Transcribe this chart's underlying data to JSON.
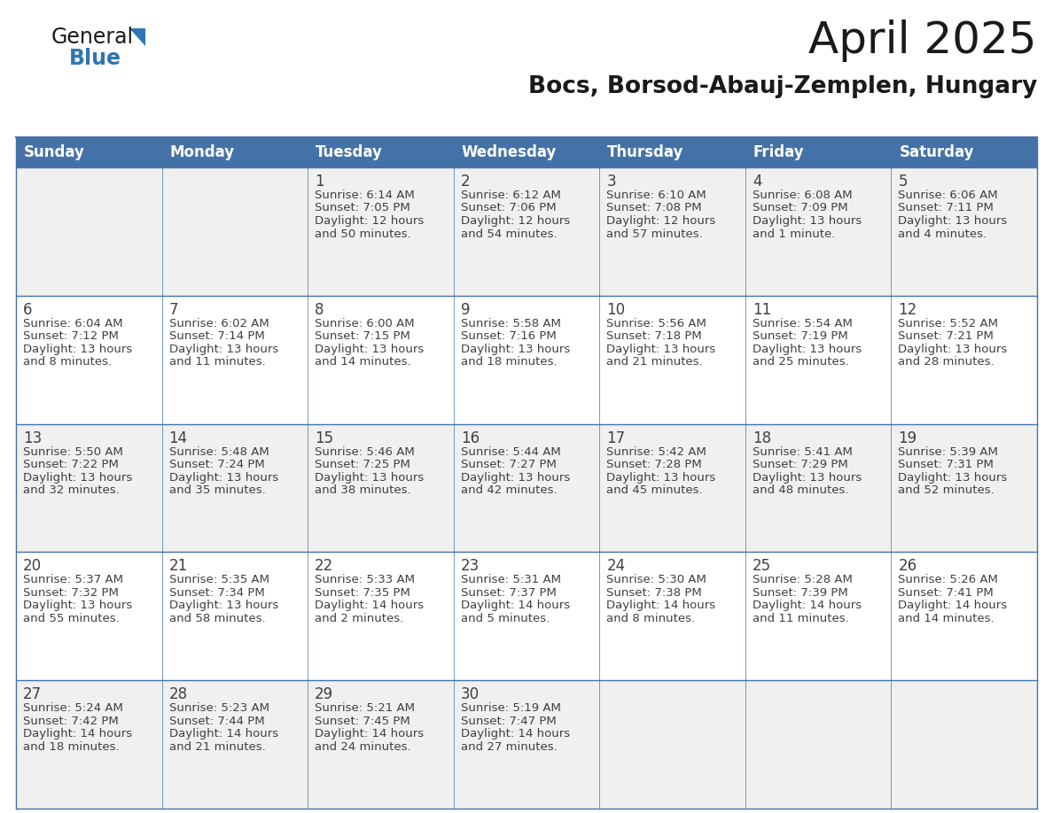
{
  "title": "April 2025",
  "subtitle": "Bocs, Borsod-Abauj-Zemplen, Hungary",
  "days_of_week": [
    "Sunday",
    "Monday",
    "Tuesday",
    "Wednesday",
    "Thursday",
    "Friday",
    "Saturday"
  ],
  "header_bg": "#4472A8",
  "header_text": "#FFFFFF",
  "cell_bg_even": "#F0F0F0",
  "cell_bg_odd": "#FFFFFF",
  "border_color": "#4472A8",
  "text_color": "#404040",
  "title_color": "#1a1a1a",
  "subtitle_color": "#1a1a1a",
  "calendar": [
    [
      {
        "day": "",
        "sunrise": "",
        "sunset": "",
        "daylight": ""
      },
      {
        "day": "",
        "sunrise": "",
        "sunset": "",
        "daylight": ""
      },
      {
        "day": "1",
        "sunrise": "Sunrise: 6:14 AM",
        "sunset": "Sunset: 7:05 PM",
        "daylight": "Daylight: 12 hours\nand 50 minutes."
      },
      {
        "day": "2",
        "sunrise": "Sunrise: 6:12 AM",
        "sunset": "Sunset: 7:06 PM",
        "daylight": "Daylight: 12 hours\nand 54 minutes."
      },
      {
        "day": "3",
        "sunrise": "Sunrise: 6:10 AM",
        "sunset": "Sunset: 7:08 PM",
        "daylight": "Daylight: 12 hours\nand 57 minutes."
      },
      {
        "day": "4",
        "sunrise": "Sunrise: 6:08 AM",
        "sunset": "Sunset: 7:09 PM",
        "daylight": "Daylight: 13 hours\nand 1 minute."
      },
      {
        "day": "5",
        "sunrise": "Sunrise: 6:06 AM",
        "sunset": "Sunset: 7:11 PM",
        "daylight": "Daylight: 13 hours\nand 4 minutes."
      }
    ],
    [
      {
        "day": "6",
        "sunrise": "Sunrise: 6:04 AM",
        "sunset": "Sunset: 7:12 PM",
        "daylight": "Daylight: 13 hours\nand 8 minutes."
      },
      {
        "day": "7",
        "sunrise": "Sunrise: 6:02 AM",
        "sunset": "Sunset: 7:14 PM",
        "daylight": "Daylight: 13 hours\nand 11 minutes."
      },
      {
        "day": "8",
        "sunrise": "Sunrise: 6:00 AM",
        "sunset": "Sunset: 7:15 PM",
        "daylight": "Daylight: 13 hours\nand 14 minutes."
      },
      {
        "day": "9",
        "sunrise": "Sunrise: 5:58 AM",
        "sunset": "Sunset: 7:16 PM",
        "daylight": "Daylight: 13 hours\nand 18 minutes."
      },
      {
        "day": "10",
        "sunrise": "Sunrise: 5:56 AM",
        "sunset": "Sunset: 7:18 PM",
        "daylight": "Daylight: 13 hours\nand 21 minutes."
      },
      {
        "day": "11",
        "sunrise": "Sunrise: 5:54 AM",
        "sunset": "Sunset: 7:19 PM",
        "daylight": "Daylight: 13 hours\nand 25 minutes."
      },
      {
        "day": "12",
        "sunrise": "Sunrise: 5:52 AM",
        "sunset": "Sunset: 7:21 PM",
        "daylight": "Daylight: 13 hours\nand 28 minutes."
      }
    ],
    [
      {
        "day": "13",
        "sunrise": "Sunrise: 5:50 AM",
        "sunset": "Sunset: 7:22 PM",
        "daylight": "Daylight: 13 hours\nand 32 minutes."
      },
      {
        "day": "14",
        "sunrise": "Sunrise: 5:48 AM",
        "sunset": "Sunset: 7:24 PM",
        "daylight": "Daylight: 13 hours\nand 35 minutes."
      },
      {
        "day": "15",
        "sunrise": "Sunrise: 5:46 AM",
        "sunset": "Sunset: 7:25 PM",
        "daylight": "Daylight: 13 hours\nand 38 minutes."
      },
      {
        "day": "16",
        "sunrise": "Sunrise: 5:44 AM",
        "sunset": "Sunset: 7:27 PM",
        "daylight": "Daylight: 13 hours\nand 42 minutes."
      },
      {
        "day": "17",
        "sunrise": "Sunrise: 5:42 AM",
        "sunset": "Sunset: 7:28 PM",
        "daylight": "Daylight: 13 hours\nand 45 minutes."
      },
      {
        "day": "18",
        "sunrise": "Sunrise: 5:41 AM",
        "sunset": "Sunset: 7:29 PM",
        "daylight": "Daylight: 13 hours\nand 48 minutes."
      },
      {
        "day": "19",
        "sunrise": "Sunrise: 5:39 AM",
        "sunset": "Sunset: 7:31 PM",
        "daylight": "Daylight: 13 hours\nand 52 minutes."
      }
    ],
    [
      {
        "day": "20",
        "sunrise": "Sunrise: 5:37 AM",
        "sunset": "Sunset: 7:32 PM",
        "daylight": "Daylight: 13 hours\nand 55 minutes."
      },
      {
        "day": "21",
        "sunrise": "Sunrise: 5:35 AM",
        "sunset": "Sunset: 7:34 PM",
        "daylight": "Daylight: 13 hours\nand 58 minutes."
      },
      {
        "day": "22",
        "sunrise": "Sunrise: 5:33 AM",
        "sunset": "Sunset: 7:35 PM",
        "daylight": "Daylight: 14 hours\nand 2 minutes."
      },
      {
        "day": "23",
        "sunrise": "Sunrise: 5:31 AM",
        "sunset": "Sunset: 7:37 PM",
        "daylight": "Daylight: 14 hours\nand 5 minutes."
      },
      {
        "day": "24",
        "sunrise": "Sunrise: 5:30 AM",
        "sunset": "Sunset: 7:38 PM",
        "daylight": "Daylight: 14 hours\nand 8 minutes."
      },
      {
        "day": "25",
        "sunrise": "Sunrise: 5:28 AM",
        "sunset": "Sunset: 7:39 PM",
        "daylight": "Daylight: 14 hours\nand 11 minutes."
      },
      {
        "day": "26",
        "sunrise": "Sunrise: 5:26 AM",
        "sunset": "Sunset: 7:41 PM",
        "daylight": "Daylight: 14 hours\nand 14 minutes."
      }
    ],
    [
      {
        "day": "27",
        "sunrise": "Sunrise: 5:24 AM",
        "sunset": "Sunset: 7:42 PM",
        "daylight": "Daylight: 14 hours\nand 18 minutes."
      },
      {
        "day": "28",
        "sunrise": "Sunrise: 5:23 AM",
        "sunset": "Sunset: 7:44 PM",
        "daylight": "Daylight: 14 hours\nand 21 minutes."
      },
      {
        "day": "29",
        "sunrise": "Sunrise: 5:21 AM",
        "sunset": "Sunset: 7:45 PM",
        "daylight": "Daylight: 14 hours\nand 24 minutes."
      },
      {
        "day": "30",
        "sunrise": "Sunrise: 5:19 AM",
        "sunset": "Sunset: 7:47 PM",
        "daylight": "Daylight: 14 hours\nand 27 minutes."
      },
      {
        "day": "",
        "sunrise": "",
        "sunset": "",
        "daylight": ""
      },
      {
        "day": "",
        "sunrise": "",
        "sunset": "",
        "daylight": ""
      },
      {
        "day": "",
        "sunrise": "",
        "sunset": "",
        "daylight": ""
      }
    ]
  ],
  "logo_text1": "General",
  "logo_text2": "Blue",
  "title_fontsize": 36,
  "subtitle_fontsize": 19,
  "header_fontsize": 12,
  "day_num_fontsize": 12,
  "cell_text_fontsize": 9.5
}
